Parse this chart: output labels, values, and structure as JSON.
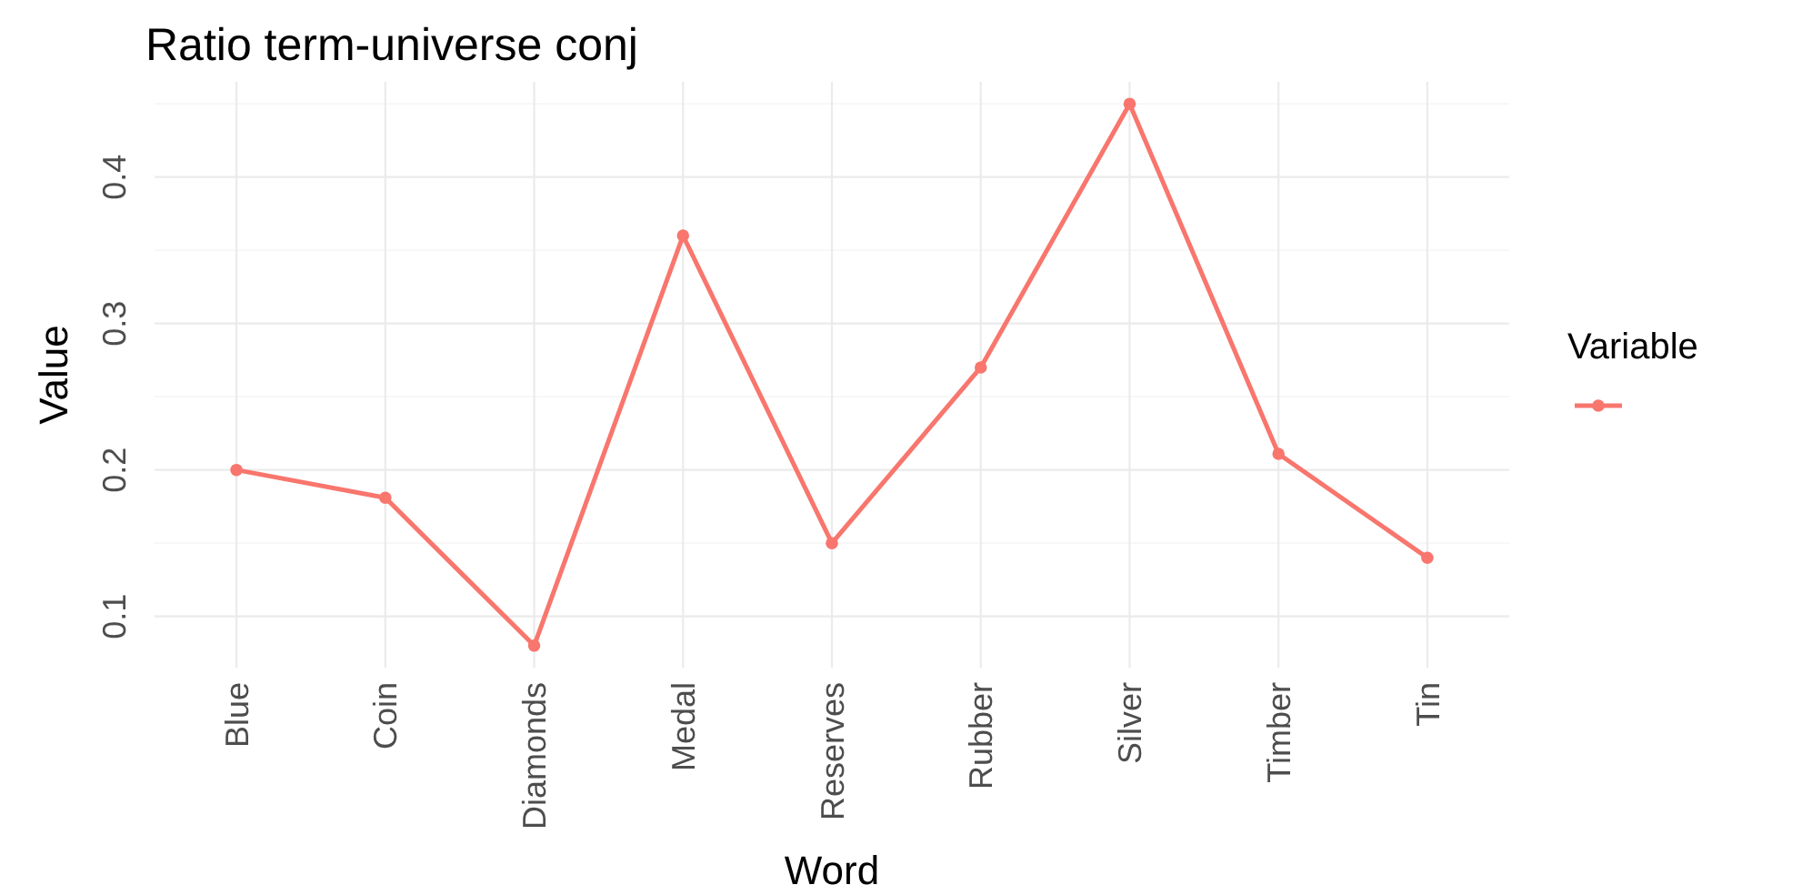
{
  "chart_data": {
    "type": "line",
    "title": "Ratio term-universe conj",
    "xlabel": "Word",
    "ylabel": "Value",
    "legend_title": "Variable",
    "grid": true,
    "marker": "circle",
    "line_style": "solid",
    "categories": [
      "Blue",
      "Coin",
      "Diamonds",
      "Medal",
      "Reserves",
      "Rubber",
      "Silver",
      "Timber",
      "Tin"
    ],
    "series": [
      {
        "color": "#f8766d",
        "values": [
          0.2,
          0.181,
          0.08,
          0.36,
          0.15,
          0.27,
          0.45,
          0.211,
          0.14
        ]
      }
    ],
    "ylim": [
      0.065,
      0.465
    ],
    "yticks": [
      {
        "value": 0.1,
        "label": "0.1"
      },
      {
        "value": 0.15,
        "label": null
      },
      {
        "value": 0.2,
        "label": "0.2"
      },
      {
        "value": 0.25,
        "label": null
      },
      {
        "value": 0.3,
        "label": "0.3"
      },
      {
        "value": 0.35,
        "label": null
      },
      {
        "value": 0.4,
        "label": "0.4"
      },
      {
        "value": 0.45,
        "label": null
      }
    ]
  }
}
